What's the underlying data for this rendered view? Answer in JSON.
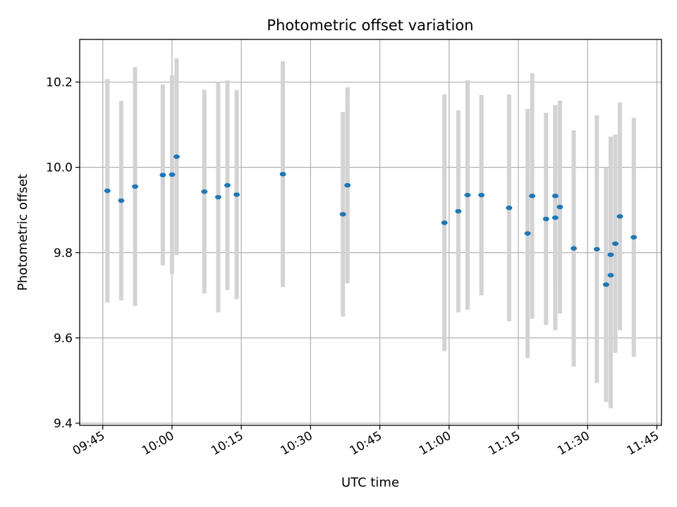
{
  "chart_data": {
    "type": "scatter",
    "title": "Photometric offset variation",
    "xlabel": "UTC time",
    "ylabel": "Photometric offset",
    "x_ticks": [
      "09:45",
      "10:00",
      "10:15",
      "10:30",
      "10:45",
      "11:00",
      "11:15",
      "11:30",
      "11:45"
    ],
    "y_ticks": [
      "9.4",
      "9.6",
      "9.8",
      "10.0",
      "10.2"
    ],
    "xlim": [
      "09:40",
      "11:46"
    ],
    "ylim": [
      9.395,
      10.3
    ],
    "grid": true,
    "colors": {
      "points": "#1f77b4",
      "error_bars": "#d3d3d3",
      "grid": "#b0b0b0"
    },
    "series": [
      {
        "points": [
          {
            "x": "09:46",
            "y": 9.945,
            "y_low": 9.683,
            "y_high": 10.207
          },
          {
            "x": "09:49",
            "y": 9.922,
            "y_low": 9.688,
            "y_high": 10.156
          },
          {
            "x": "09:52",
            "y": 9.955,
            "y_low": 9.675,
            "y_high": 10.235
          },
          {
            "x": "09:58",
            "y": 9.982,
            "y_low": 9.77,
            "y_high": 10.194
          },
          {
            "x": "10:00",
            "y": 9.983,
            "y_low": 9.75,
            "y_high": 10.216
          },
          {
            "x": "10:01",
            "y": 10.025,
            "y_low": 9.794,
            "y_high": 10.256
          },
          {
            "x": "10:07",
            "y": 9.943,
            "y_low": 9.704,
            "y_high": 10.182
          },
          {
            "x": "10:10",
            "y": 9.93,
            "y_low": 9.66,
            "y_high": 10.2
          },
          {
            "x": "10:12",
            "y": 9.958,
            "y_low": 9.712,
            "y_high": 10.204
          },
          {
            "x": "10:14",
            "y": 9.936,
            "y_low": 9.691,
            "y_high": 10.181
          },
          {
            "x": "10:24",
            "y": 9.984,
            "y_low": 9.719,
            "y_high": 10.249
          },
          {
            "x": "10:37",
            "y": 9.89,
            "y_low": 9.65,
            "y_high": 10.13
          },
          {
            "x": "10:38",
            "y": 9.958,
            "y_low": 9.728,
            "y_high": 10.188
          },
          {
            "x": "10:59",
            "y": 9.87,
            "y_low": 9.569,
            "y_high": 10.171
          },
          {
            "x": "11:02",
            "y": 9.897,
            "y_low": 9.66,
            "y_high": 10.134
          },
          {
            "x": "11:04",
            "y": 9.935,
            "y_low": 9.666,
            "y_high": 10.204
          },
          {
            "x": "11:07",
            "y": 9.935,
            "y_low": 9.7,
            "y_high": 10.17
          },
          {
            "x": "11:13",
            "y": 9.905,
            "y_low": 9.639,
            "y_high": 10.171
          },
          {
            "x": "11:17",
            "y": 9.845,
            "y_low": 9.553,
            "y_high": 10.137
          },
          {
            "x": "11:18",
            "y": 9.933,
            "y_low": 9.645,
            "y_high": 10.221
          },
          {
            "x": "11:21",
            "y": 9.879,
            "y_low": 9.63,
            "y_high": 10.128
          },
          {
            "x": "11:23",
            "y": 9.882,
            "y_low": 9.618,
            "y_high": 10.146
          },
          {
            "x": "11:23",
            "y": 9.933,
            "y_low": 9.722,
            "y_high": 10.144
          },
          {
            "x": "11:24",
            "y": 9.907,
            "y_low": 9.657,
            "y_high": 10.157
          },
          {
            "x": "11:27",
            "y": 9.81,
            "y_low": 9.533,
            "y_high": 10.087
          },
          {
            "x": "11:32",
            "y": 9.808,
            "y_low": 9.494,
            "y_high": 10.122
          },
          {
            "x": "11:34",
            "y": 9.725,
            "y_low": 9.45,
            "y_high": 10.0
          },
          {
            "x": "11:35",
            "y": 9.795,
            "y_low": 9.518,
            "y_high": 10.072
          },
          {
            "x": "11:35",
            "y": 9.747,
            "y_low": 9.435,
            "y_high": 10.059
          },
          {
            "x": "11:36",
            "y": 9.821,
            "y_low": 9.565,
            "y_high": 10.077
          },
          {
            "x": "11:37",
            "y": 9.885,
            "y_low": 9.618,
            "y_high": 10.152
          },
          {
            "x": "11:40",
            "y": 9.836,
            "y_low": 9.556,
            "y_high": 10.116
          }
        ]
      }
    ]
  }
}
